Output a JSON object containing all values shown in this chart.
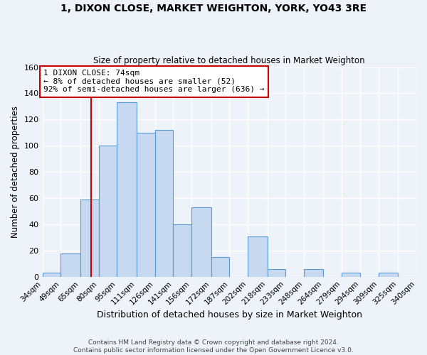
{
  "title": "1, DIXON CLOSE, MARKET WEIGHTON, YORK, YO43 3RE",
  "subtitle": "Size of property relative to detached houses in Market Weighton",
  "xlabel": "Distribution of detached houses by size in Market Weighton",
  "ylabel": "Number of detached properties",
  "bin_labels": [
    "34sqm",
    "49sqm",
    "65sqm",
    "80sqm",
    "95sqm",
    "111sqm",
    "126sqm",
    "141sqm",
    "156sqm",
    "172sqm",
    "187sqm",
    "202sqm",
    "218sqm",
    "233sqm",
    "248sqm",
    "264sqm",
    "279sqm",
    "294sqm",
    "309sqm",
    "325sqm",
    "340sqm"
  ],
  "bar_heights": [
    3,
    18,
    59,
    100,
    133,
    110,
    112,
    40,
    53,
    15,
    0,
    31,
    6,
    0,
    6,
    0,
    3,
    0,
    3,
    0,
    1
  ],
  "bar_color": "#c6d9f0",
  "bar_edge_color": "#5b9bd5",
  "vline_x": 74,
  "bin_edges": [
    34,
    49,
    65,
    80,
    95,
    111,
    126,
    141,
    156,
    172,
    187,
    202,
    218,
    233,
    248,
    264,
    279,
    294,
    309,
    325,
    340
  ],
  "annotation_line1": "1 DIXON CLOSE: 74sqm",
  "annotation_line2": "← 8% of detached houses are smaller (52)",
  "annotation_line3": "92% of semi-detached houses are larger (636) →",
  "annotation_box_color": "#ffffff",
  "annotation_box_edge": "#cc0000",
  "ylim": [
    0,
    160
  ],
  "yticks": [
    0,
    20,
    40,
    60,
    80,
    100,
    120,
    140,
    160
  ],
  "footer1": "Contains HM Land Registry data © Crown copyright and database right 2024.",
  "footer2": "Contains public sector information licensed under the Open Government Licence v3.0.",
  "bg_color": "#eef3fa",
  "grid_color": "#ffffff"
}
